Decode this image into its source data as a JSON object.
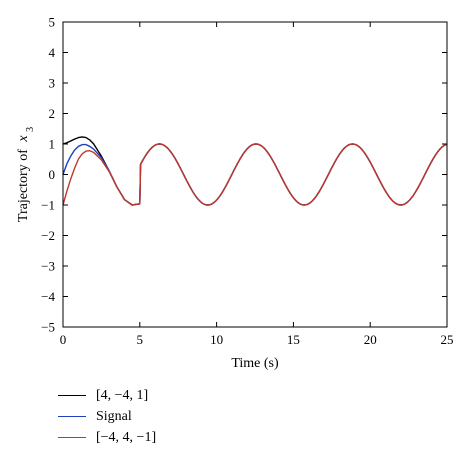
{
  "chart_data": {
    "type": "line",
    "xlabel": "Time (s)",
    "ylabel": "Trajectory of",
    "ylabel_var": "x",
    "ylabel_sub": "3",
    "xlim": [
      0,
      25
    ],
    "ylim": [
      -5,
      5
    ],
    "x_ticks": [
      0,
      5,
      10,
      15,
      20,
      25
    ],
    "x_tick_labels": [
      "0",
      "5",
      "10",
      "15",
      "20",
      "25"
    ],
    "y_ticks": [
      5,
      4,
      3,
      2,
      1,
      0,
      -1,
      -2,
      -3,
      -4,
      -5
    ],
    "y_tick_labels": [
      "5",
      "4",
      "3",
      "2",
      "1",
      "0",
      "−1",
      "−2",
      "−3",
      "−4",
      "−5"
    ],
    "grid": false,
    "legend_position": "below",
    "series": [
      {
        "name": "[4, −4, 1]",
        "color": "#000000",
        "x": [
          0,
          0.25,
          0.5,
          0.75,
          1.0,
          1.25,
          1.5,
          1.75,
          2.0,
          2.5,
          3.0,
          3.5,
          4.0,
          4.5,
          5.0
        ],
        "y": [
          1.0,
          1.04,
          1.1,
          1.16,
          1.21,
          1.23,
          1.21,
          1.13,
          1.0,
          0.6,
          0.12,
          -0.4,
          -0.82,
          -1.0,
          -0.96
        ]
      },
      {
        "name": "Signal",
        "color": "#1f3fbf",
        "x": [
          0,
          0.25,
          0.5,
          0.75,
          1.0,
          1.25,
          1.5,
          1.75,
          2.0,
          2.5,
          3.0,
          3.5,
          4.0,
          4.5,
          5.0
        ],
        "y": [
          0.0,
          0.35,
          0.6,
          0.8,
          0.92,
          0.98,
          0.98,
          0.92,
          0.83,
          0.55,
          0.12,
          -0.4,
          -0.82,
          -1.0,
          -0.96
        ]
      },
      {
        "name": "[−4, 4, −1]",
        "color": "#c0392b",
        "x": [
          0,
          0.25,
          0.5,
          0.75,
          1.0,
          1.25,
          1.5,
          1.75,
          2.0,
          2.5,
          3.0,
          3.5,
          4.0,
          4.5,
          5.0
        ],
        "y": [
          -1.0,
          -0.55,
          -0.15,
          0.2,
          0.5,
          0.68,
          0.77,
          0.78,
          0.72,
          0.48,
          0.1,
          -0.4,
          -0.82,
          -1.0,
          -0.96
        ]
      }
    ],
    "common_tail": {
      "description_free": true,
      "x_start": 5.0,
      "x_end": 25.0,
      "amplitude": 1.0,
      "period": 6.2832,
      "phase_zero_at": 6.28
    }
  }
}
